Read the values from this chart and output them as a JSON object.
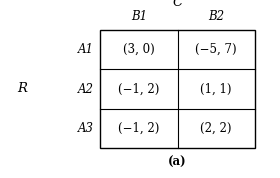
{
  "title_C": "C",
  "label_R": "R",
  "col_headers": [
    "B1",
    "B2"
  ],
  "row_headers": [
    "A1",
    "A2",
    "A3"
  ],
  "cells": [
    [
      "(3, 0)",
      "(−5, 7)"
    ],
    [
      "(−1, 2)",
      "(1, 1)"
    ],
    [
      "(−1, 2)",
      "(2, 2)"
    ]
  ],
  "caption": "(a)",
  "bg_color": "white",
  "text_color": "black",
  "font_size": 8.5,
  "header_font_size": 8.5,
  "caption_font_size": 8.5
}
